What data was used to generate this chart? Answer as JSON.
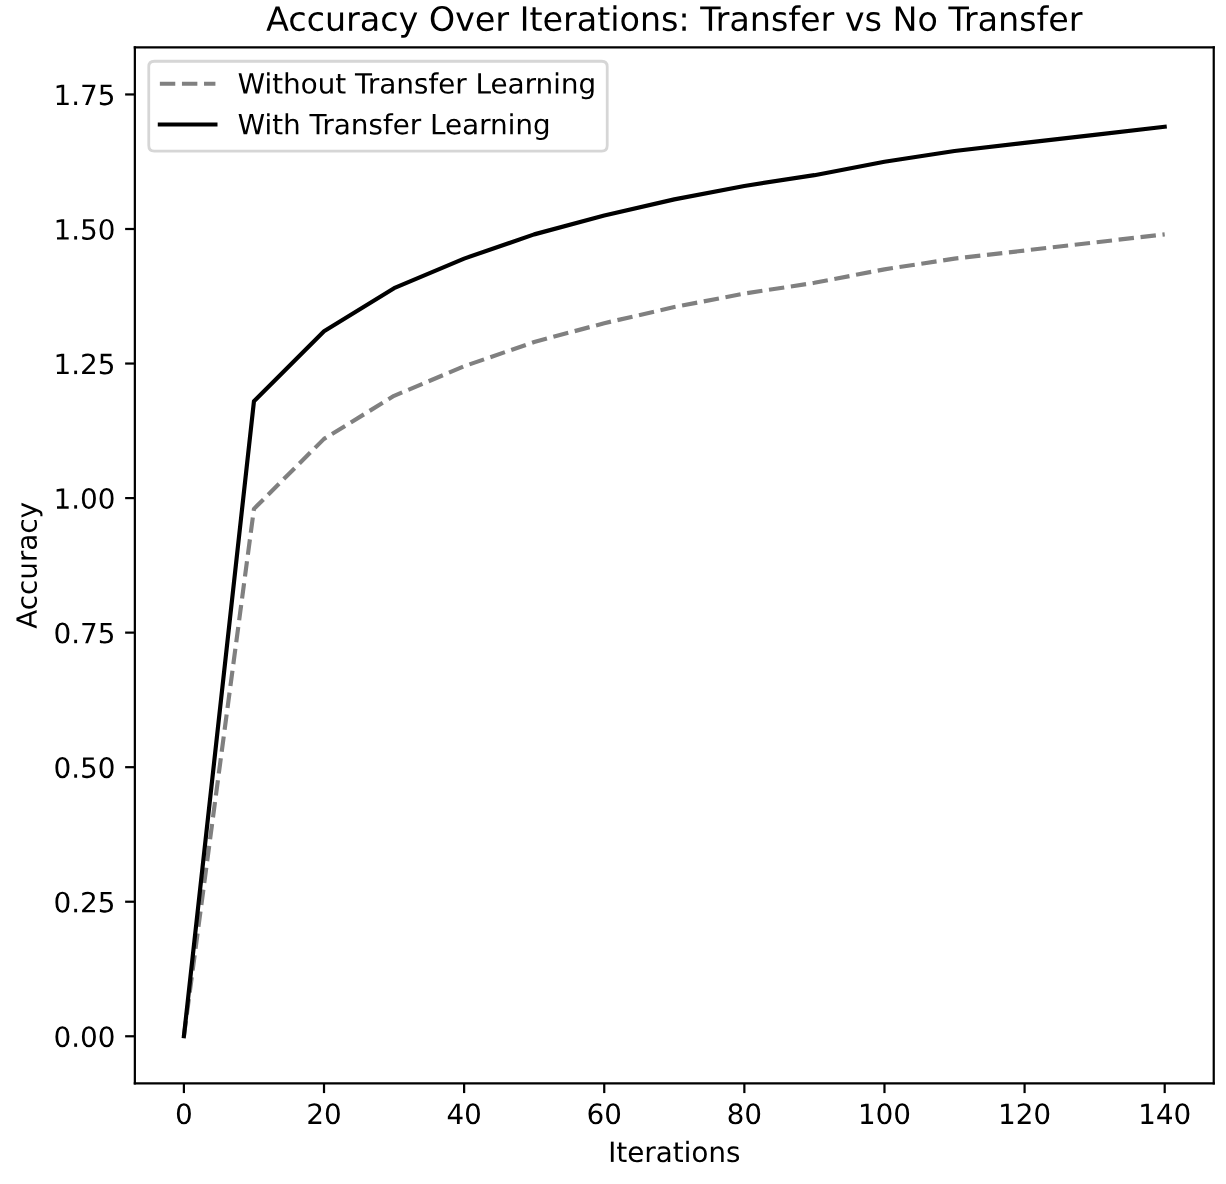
{
  "chart_data": {
    "type": "line",
    "title": "Accuracy Over Iterations: Transfer vs No Transfer",
    "xlabel": "Iterations",
    "ylabel": "Accuracy",
    "x": [
      0,
      10,
      20,
      30,
      40,
      50,
      60,
      70,
      80,
      90,
      100,
      110,
      120,
      130,
      140
    ],
    "series": [
      {
        "name": "Without Transfer Learning",
        "color": "#808080",
        "line_style": "dashed",
        "values": [
          0,
          0.98,
          1.11,
          1.19,
          1.245,
          1.29,
          1.325,
          1.355,
          1.38,
          1.4,
          1.425,
          1.445,
          1.46,
          1.475,
          1.49
        ]
      },
      {
        "name": "With Transfer Learning",
        "color": "#000000",
        "line_style": "solid",
        "values": [
          0,
          1.18,
          1.31,
          1.39,
          1.445,
          1.49,
          1.525,
          1.555,
          1.58,
          1.6,
          1.625,
          1.645,
          1.66,
          1.675,
          1.69
        ]
      }
    ],
    "xlim": [
      -7,
      147
    ],
    "ylim": [
      -0.0875,
      1.8375
    ],
    "xticks": [
      0,
      20,
      40,
      60,
      80,
      100,
      120,
      140
    ],
    "yticks": [
      {
        "value": 0,
        "label": "0.00"
      },
      {
        "value": 0.25,
        "label": "0.25"
      },
      {
        "value": 0.5,
        "label": "0.50"
      },
      {
        "value": 0.75,
        "label": "0.75"
      },
      {
        "value": 1.0,
        "label": "1.00"
      },
      {
        "value": 1.25,
        "label": "1.25"
      },
      {
        "value": 1.5,
        "label": "1.50"
      },
      {
        "value": 1.75,
        "label": "1.75"
      }
    ],
    "legend": "top left",
    "grid": false,
    "marker": "none"
  }
}
